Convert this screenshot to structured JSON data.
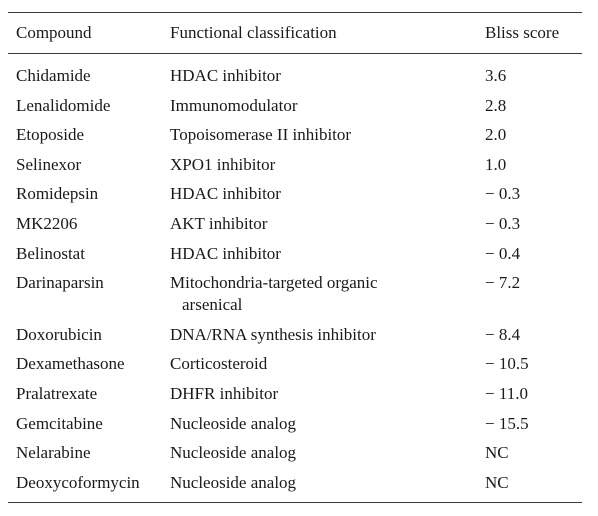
{
  "table": {
    "headers": {
      "compound": "Compound",
      "classification": "Functional classification",
      "score": "Bliss score"
    },
    "rows": [
      {
        "compound": "Chidamide",
        "classification": "HDAC inhibitor",
        "score": "3.6"
      },
      {
        "compound": "Lenalidomide",
        "classification": "Immunomodulator",
        "score": "2.8"
      },
      {
        "compound": "Etoposide",
        "classification": "Topoisomerase II inhibitor",
        "score": "2.0"
      },
      {
        "compound": "Selinexor",
        "classification": "XPO1 inhibitor",
        "score": "1.0"
      },
      {
        "compound": "Romidepsin",
        "classification": "HDAC inhibitor",
        "score": "− 0.3"
      },
      {
        "compound": "MK2206",
        "classification": "AKT inhibitor",
        "score": "− 0.3"
      },
      {
        "compound": "Belinostat",
        "classification": "HDAC inhibitor",
        "score": "− 0.4"
      },
      {
        "compound": "Darinaparsin",
        "classification": "Mitochondria-targeted organic",
        "classification_cont": "arsenical",
        "score": "− 7.2"
      },
      {
        "compound": "Doxorubicin",
        "classification": "DNA/RNA synthesis inhibitor",
        "score": "− 8.4"
      },
      {
        "compound": "Dexamethasone",
        "classification": "Corticosteroid",
        "score": "− 10.5"
      },
      {
        "compound": "Pralatrexate",
        "classification": "DHFR inhibitor",
        "score": "− 11.0"
      },
      {
        "compound": "Gemcitabine",
        "classification": "Nucleoside analog",
        "score": "− 15.5"
      },
      {
        "compound": "Nelarabine",
        "classification": "Nucleoside analog",
        "score": "NC"
      },
      {
        "compound": "Deoxycoformycin",
        "classification": "Nucleoside analog",
        "score": "NC"
      }
    ]
  }
}
